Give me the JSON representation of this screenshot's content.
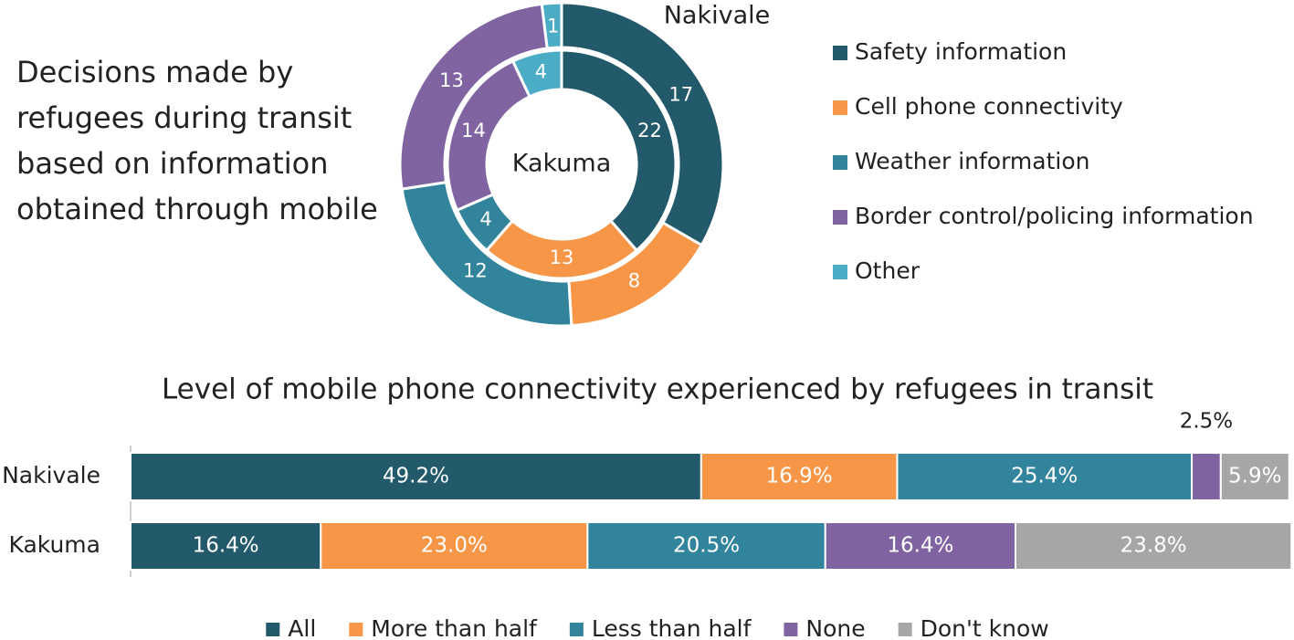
{
  "chart_data": [
    {
      "type": "donut",
      "title": "Decisions made by refugees during transit based on information obtained through mobile",
      "categories": [
        "Safety information",
        "Cell phone connectivity",
        "Weather information",
        "Border control/policing information",
        "Other"
      ],
      "colors": [
        "#235a6b",
        "#f79646",
        "#31849b",
        "#8064a2",
        "#4bacc6"
      ],
      "series": [
        {
          "name": "Nakivale",
          "values": [
            17,
            8,
            12,
            13,
            1
          ]
        },
        {
          "name": "Kakuma",
          "values": [
            22,
            13,
            4,
            14,
            4
          ]
        }
      ]
    },
    {
      "type": "stacked-bar",
      "title": "Level of mobile phone connectivity experienced by refugees in transit",
      "categories": [
        "Nakivale",
        "Kakuma"
      ],
      "xlim": [
        0,
        100
      ],
      "series": [
        {
          "name": "All",
          "color": "#235a6b",
          "values": [
            49.2,
            16.4
          ],
          "value_labels": [
            "49.2%",
            "16.4%"
          ]
        },
        {
          "name": "More than half",
          "color": "#f79646",
          "values": [
            16.9,
            23.0
          ],
          "value_labels": [
            "16.9%",
            "23.0%"
          ]
        },
        {
          "name": "Less than half",
          "color": "#31849b",
          "values": [
            25.4,
            20.5
          ],
          "value_labels": [
            "25.4%",
            "20.5%"
          ]
        },
        {
          "name": "None",
          "color": "#8064a2",
          "values": [
            2.5,
            16.4
          ],
          "value_labels": [
            "2.5%",
            "16.4%"
          ]
        },
        {
          "name": "Don't know",
          "color": "#a6a6a6",
          "values": [
            5.9,
            23.8
          ],
          "value_labels": [
            "5.9%",
            "23.8%"
          ]
        }
      ]
    }
  ]
}
